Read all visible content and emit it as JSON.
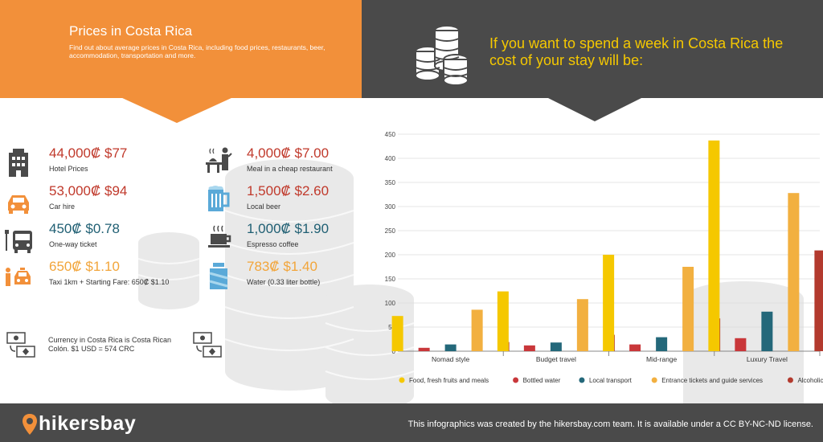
{
  "left_panel": {
    "title": "Prices in Costa Rica",
    "subtitle": "Find out about average prices in Costa Rica, including food prices, restaurants, beer, accommodation, transportation and more."
  },
  "right_panel": {
    "title": "If you want to spend a week in Costa Rica the cost of your stay will be:"
  },
  "prices": [
    {
      "price": "44,000₡ $77",
      "label": "Hotel Prices",
      "color": "#c0392b",
      "icon": "hotel-icon"
    },
    {
      "price": "53,000₡ $94",
      "label": "Car hire",
      "color": "#c0392b",
      "icon": "car-icon"
    },
    {
      "price": "450₡ $0.78",
      "label": "One-way ticket",
      "color": "#1f5f73",
      "icon": "bus-icon"
    },
    {
      "price": "650₡ $1.10",
      "label": "Taxi 1km + Starting Fare: 650₡ $1.10",
      "color": "#f2a53a",
      "icon": "taxi-icon"
    },
    {
      "price": "4,000₡ $7.00",
      "label": "Meal in a cheap restaurant",
      "color": "#c0392b",
      "icon": "restaurant-icon"
    },
    {
      "price": "1,500₡ $2.60",
      "label": "Local beer",
      "color": "#c0392b",
      "icon": "beer-icon"
    },
    {
      "price": "1,000₡ $1.90",
      "label": "Espresso coffee",
      "color": "#1f5f73",
      "icon": "coffee-icon"
    },
    {
      "price": "783₡ $1.40",
      "label": "Water (0.33 liter bottle)",
      "color": "#f2a53a",
      "icon": "water-icon"
    }
  ],
  "currency": {
    "text": "Currency in Costa Rica is Costa Rican Colón. $1 USD = 574 CRC"
  },
  "footer": {
    "brand": "hikersbay",
    "credit": "This infographics was created by the hikersbay.com team. It is available under a CC BY-NC-ND license."
  },
  "chart_data": {
    "type": "bar",
    "categories": [
      "Nomad style",
      "Budget travel",
      "Mid-range",
      "Luxury Travel"
    ],
    "series": [
      {
        "name": "Food, fresh fruits and meals",
        "color": "#f5c800",
        "values": [
          73,
          124,
          200,
          437
        ]
      },
      {
        "name": "Bottled water",
        "color": "#c9373a",
        "values": [
          7,
          12,
          14,
          27
        ]
      },
      {
        "name": "Local transport",
        "color": "#24687a",
        "values": [
          14,
          18,
          29,
          82
        ]
      },
      {
        "name": "Entrance tickets and guide services",
        "color": "#f2b040",
        "values": [
          86,
          108,
          175,
          328
        ]
      },
      {
        "name": "Alcoholic beverages",
        "color": "#b33a2e",
        "values": [
          19,
          34,
          68,
          209
        ]
      }
    ],
    "yticks": [
      0,
      50,
      100,
      150,
      200,
      250,
      300,
      350,
      400,
      450
    ],
    "ylim": [
      0,
      450
    ],
    "grid": true,
    "legend": "bottom",
    "title": "",
    "xlabel": "",
    "ylabel": ""
  }
}
